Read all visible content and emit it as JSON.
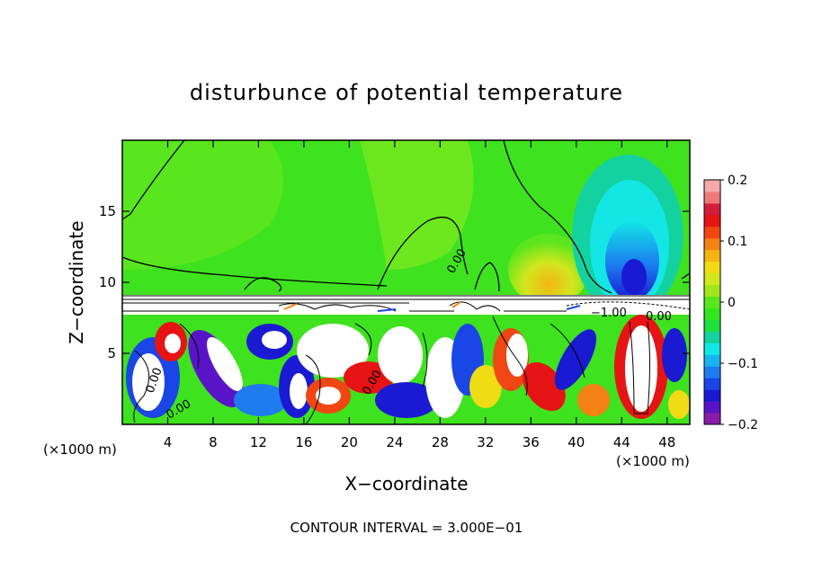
{
  "chart_data": {
    "type": "heatmap",
    "title": "disturbunce of potential temperature",
    "xlabel": "X−coordinate",
    "ylabel": "Z−coordinate",
    "x_unit": "(×1000 m)",
    "x_unit_right": "(×1000 m)",
    "xlim": [
      0,
      50
    ],
    "ylim": [
      0,
      20
    ],
    "x_ticks": [
      4,
      8,
      12,
      16,
      20,
      24,
      28,
      32,
      36,
      40,
      44,
      48
    ],
    "x_tick_labels": [
      "4",
      "8",
      "12",
      "16",
      "20",
      "24",
      "28",
      "32",
      "36",
      "40",
      "44",
      "48"
    ],
    "y_ticks": [
      5,
      10,
      15
    ],
    "y_tick_labels": [
      "5",
      "10",
      "15"
    ],
    "colorbar": {
      "range": [
        -0.2,
        0.2
      ],
      "ticks": [
        0.2,
        0.1,
        0,
        -0.1,
        -0.2
      ],
      "tick_labels": [
        "0.2",
        "0.1",
        "0",
        "−0.1",
        "−0.2"
      ],
      "colors": [
        "#8a1ea8",
        "#5a14c8",
        "#1a1ad2",
        "#1a46e6",
        "#1e7cf0",
        "#19b4f0",
        "#14e6e6",
        "#14d2a0",
        "#1ede3c",
        "#32e61e",
        "#5ae61e",
        "#a0e61e",
        "#d2e61e",
        "#f0dc14",
        "#f5b414",
        "#f58214",
        "#f04614",
        "#e61414",
        "#d21e3c",
        "#f07878",
        "#f5a8a8"
      ]
    },
    "contour_labels": [
      "0.00",
      "0.00",
      "0.00",
      "0.00",
      "−1.00",
      "0.00"
    ],
    "footer": "CONTOUR INTERVAL = 3.000E−01"
  }
}
